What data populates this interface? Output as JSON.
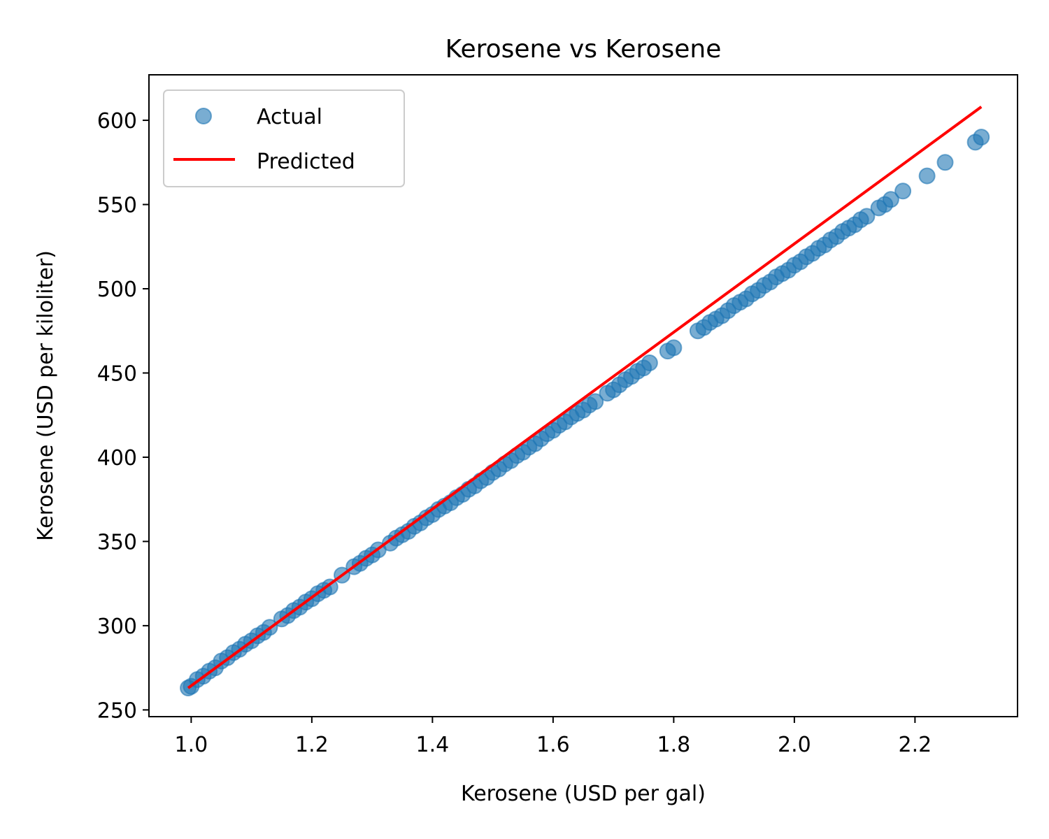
{
  "chart_data": {
    "type": "scatter",
    "title": "Kerosene vs Kerosene",
    "xlabel": "Kerosene (USD per gal)",
    "ylabel": "Kerosene (USD per kiloliter)",
    "xlim": [
      0.93,
      2.37
    ],
    "ylim": [
      246,
      627
    ],
    "xticks": [
      "1.0",
      "1.2",
      "1.4",
      "1.6",
      "1.8",
      "2.0",
      "2.2"
    ],
    "yticks": [
      "250",
      "300",
      "350",
      "400",
      "450",
      "500",
      "550",
      "600"
    ],
    "legend": {
      "placement": "upper-left",
      "entries": [
        "Actual",
        "Predicted"
      ]
    },
    "grid": false,
    "series": [
      {
        "name": "Actual",
        "kind": "scatter",
        "color": "#1f77b4",
        "alpha": 0.6,
        "x": [
          0.995,
          1.0,
          1.01,
          1.02,
          1.03,
          1.04,
          1.05,
          1.06,
          1.07,
          1.08,
          1.09,
          1.1,
          1.11,
          1.12,
          1.13,
          1.15,
          1.16,
          1.17,
          1.18,
          1.19,
          1.2,
          1.21,
          1.22,
          1.23,
          1.25,
          1.27,
          1.28,
          1.29,
          1.3,
          1.31,
          1.33,
          1.34,
          1.35,
          1.36,
          1.37,
          1.38,
          1.39,
          1.4,
          1.41,
          1.42,
          1.43,
          1.44,
          1.45,
          1.46,
          1.47,
          1.48,
          1.49,
          1.5,
          1.51,
          1.52,
          1.53,
          1.54,
          1.55,
          1.56,
          1.57,
          1.58,
          1.59,
          1.6,
          1.61,
          1.62,
          1.63,
          1.64,
          1.65,
          1.66,
          1.67,
          1.69,
          1.7,
          1.71,
          1.72,
          1.73,
          1.74,
          1.75,
          1.76,
          1.79,
          1.8,
          1.84,
          1.85,
          1.86,
          1.87,
          1.88,
          1.89,
          1.9,
          1.91,
          1.92,
          1.93,
          1.94,
          1.95,
          1.96,
          1.97,
          1.98,
          1.99,
          2.0,
          2.01,
          2.02,
          2.03,
          2.04,
          2.05,
          2.06,
          2.07,
          2.08,
          2.09,
          2.1,
          2.11,
          2.12,
          2.14,
          2.15,
          2.16,
          2.18,
          2.22,
          2.25,
          2.3,
          2.31
        ],
        "y": [
          263,
          264,
          268,
          270,
          273,
          275,
          279,
          281,
          284,
          286,
          289,
          291,
          294,
          296,
          299,
          304,
          306,
          309,
          311,
          314,
          316,
          319,
          321,
          323,
          330,
          335,
          337,
          340,
          342,
          345,
          349,
          352,
          354,
          356,
          359,
          361,
          364,
          366,
          369,
          371,
          373,
          376,
          378,
          381,
          383,
          386,
          388,
          391,
          393,
          396,
          398,
          401,
          403,
          406,
          408,
          411,
          414,
          416,
          419,
          421,
          424,
          426,
          428,
          431,
          433,
          438,
          440,
          443,
          446,
          448,
          451,
          453,
          456,
          463,
          465,
          475,
          477,
          480,
          482,
          484,
          487,
          490,
          492,
          494,
          497,
          499,
          502,
          504,
          507,
          509,
          511,
          514,
          516,
          519,
          521,
          524,
          526,
          529,
          531,
          534,
          536,
          538,
          541,
          543,
          548,
          550,
          553,
          558,
          567,
          575,
          587,
          590
        ]
      },
      {
        "name": "Predicted",
        "kind": "line",
        "color": "#ff0000",
        "x": [
          0.995,
          2.31
        ],
        "y": [
          263,
          608
        ]
      }
    ]
  }
}
